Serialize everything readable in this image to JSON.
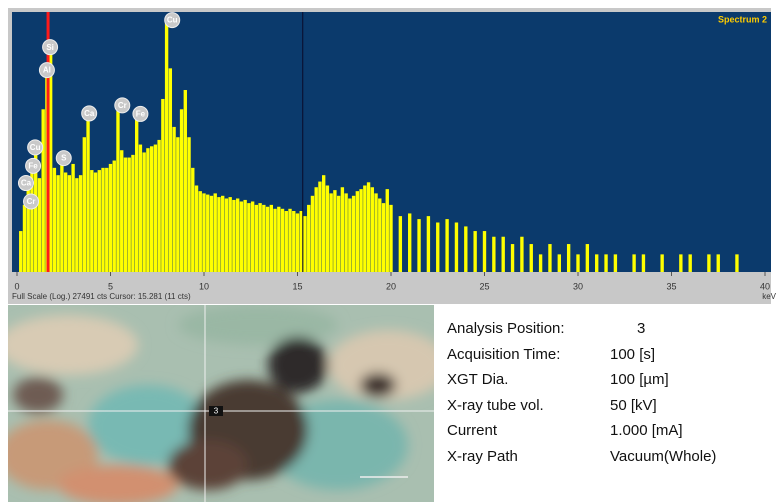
{
  "chart_data": {
    "type": "bar",
    "spectrum_name": "Spectrum 2",
    "x_label": "keV",
    "footer": "Full Scale (Log.) 27491 cts Cursor: 15.281  (11 cts)",
    "log_scale": true,
    "color": "#ffff00",
    "background": "#0b3a6c",
    "xlim": [
      0,
      40
    ],
    "xticks": [
      0,
      5,
      10,
      15,
      20,
      25,
      30,
      35,
      40
    ],
    "ylim": [
      1,
      27491
    ],
    "cursor": 15.281,
    "marker": 1.66,
    "x": [
      0.2,
      0.4,
      0.6,
      0.8,
      1.0,
      1.2,
      1.4,
      1.6,
      1.8,
      2.0,
      2.2,
      2.4,
      2.6,
      2.8,
      3.0,
      3.2,
      3.4,
      3.6,
      3.8,
      4.0,
      4.2,
      4.4,
      4.6,
      4.8,
      5.0,
      5.2,
      5.4,
      5.6,
      5.8,
      6.0,
      6.2,
      6.4,
      6.6,
      6.8,
      7.0,
      7.2,
      7.4,
      7.6,
      7.8,
      8.0,
      8.2,
      8.4,
      8.6,
      8.8,
      9.0,
      9.2,
      9.4,
      9.6,
      9.8,
      10.0,
      10.2,
      10.4,
      10.6,
      10.8,
      11.0,
      11.2,
      11.4,
      11.6,
      11.8,
      12.0,
      12.2,
      12.4,
      12.6,
      12.8,
      13.0,
      13.2,
      13.4,
      13.6,
      13.8,
      14.0,
      14.2,
      14.4,
      14.6,
      14.8,
      15.0,
      15.2,
      15.4,
      15.6,
      15.8,
      16.0,
      16.2,
      16.4,
      16.6,
      16.8,
      17.0,
      17.2,
      17.4,
      17.6,
      17.8,
      18.0,
      18.2,
      18.4,
      18.6,
      18.8,
      19.0,
      19.2,
      19.4,
      19.6,
      19.8,
      20.0,
      20.5,
      21,
      21.5,
      22,
      22.5,
      23,
      23.5,
      24,
      24.5,
      25,
      25.5,
      26,
      26.5,
      27,
      27.5,
      28,
      28.5,
      29,
      29.5,
      30,
      30.5,
      31,
      31.5,
      32,
      32.5,
      33,
      33.5,
      34,
      34.5,
      35,
      35.5,
      36,
      36.5,
      37,
      37.5,
      38,
      38.5,
      39,
      39.5
    ],
    "values": [
      5,
      14,
      30,
      60,
      110,
      40,
      600,
      2800,
      5500,
      60,
      45,
      110,
      50,
      45,
      70,
      40,
      45,
      200,
      380,
      55,
      50,
      55,
      60,
      60,
      70,
      80,
      560,
      120,
      90,
      90,
      100,
      420,
      150,
      110,
      130,
      140,
      150,
      180,
      900,
      19000,
      3000,
      300,
      200,
      600,
      1280,
      200,
      60,
      30,
      24,
      22,
      21,
      20,
      22,
      19,
      20,
      18,
      19,
      17,
      18,
      16,
      17,
      15,
      16,
      14,
      15,
      14,
      13,
      14,
      12,
      13,
      12,
      11,
      12,
      11,
      10,
      11,
      9,
      14,
      20,
      28,
      35,
      45,
      30,
      22,
      25,
      20,
      28,
      22,
      18,
      20,
      24,
      26,
      30,
      34,
      28,
      22,
      18,
      15,
      26,
      14,
      9,
      10,
      8,
      9,
      7,
      8,
      7,
      6,
      5,
      5,
      4,
      4,
      3,
      4,
      3,
      2,
      3,
      2,
      3,
      2,
      3,
      2,
      2,
      2,
      1,
      2,
      2,
      1,
      2,
      1,
      2,
      2,
      1,
      2,
      2,
      1,
      2,
      1,
      1
    ],
    "annotations": [
      {
        "label": "Cu",
        "x": 8.3,
        "y": 20000
      },
      {
        "label": "Si",
        "x": 1.77,
        "y": 6900
      },
      {
        "label": "Al",
        "x": 1.6,
        "y": 2800
      },
      {
        "label": "Ca",
        "x": 3.86,
        "y": 510
      },
      {
        "label": "Cr",
        "x": 5.63,
        "y": 700
      },
      {
        "label": "Fe",
        "x": 6.6,
        "y": 500
      },
      {
        "label": "S",
        "x": 2.5,
        "y": 88
      },
      {
        "label": "Cu",
        "x": 0.97,
        "y": 134
      },
      {
        "label": "Fe",
        "x": 0.86,
        "y": 65
      },
      {
        "label": "Ca",
        "x": 0.48,
        "y": 33
      },
      {
        "label": "Cr",
        "x": 0.75,
        "y": 16
      }
    ]
  },
  "info": {
    "rows": [
      [
        "Analysis Position:",
        "3"
      ],
      [
        "Acquisition Time:",
        "100 [s]"
      ],
      [
        "XGT Dia.",
        "100 [µm]"
      ],
      [
        "X-ray tube vol.",
        "50 [kV]"
      ],
      [
        "Current",
        "1.000 [mA]"
      ],
      [
        "X-ray Path",
        "Vacuum(Whole)"
      ]
    ]
  }
}
